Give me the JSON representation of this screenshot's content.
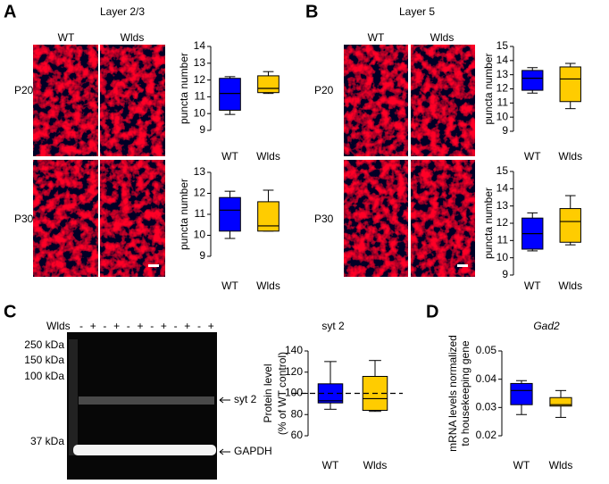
{
  "panel_a": {
    "letter": "A",
    "title": "Layer 2/3",
    "columns": [
      "WT",
      "Wlds"
    ],
    "rows": [
      "P20",
      "P30"
    ]
  },
  "panel_b": {
    "letter": "B",
    "title": "Layer 5",
    "columns": [
      "WT",
      "Wlds"
    ],
    "rows": [
      "P20",
      "P30"
    ]
  },
  "panel_c": {
    "letter": "C",
    "lane_label": "Wlds",
    "lanes": [
      "-",
      "+",
      "-",
      "+",
      "-",
      "+",
      "-",
      "+",
      "-",
      "+",
      "-",
      "+"
    ],
    "markers": [
      "250 kDa",
      "150 kDa",
      "100 kDa",
      "37 kDa"
    ],
    "bands": [
      "syt 2",
      "GAPDH"
    ]
  },
  "panel_d": {
    "letter": "D"
  },
  "chart_data": [
    {
      "type": "box",
      "ylabel": "puncta number",
      "categories": [
        "WT",
        "Wlds"
      ],
      "colors": [
        "#0000ff",
        "#ffcc00"
      ],
      "ylim": [
        9,
        14
      ],
      "yticks": [
        9,
        10,
        11,
        12,
        13,
        14
      ],
      "boxes": [
        {
          "whisker_low": 9.95,
          "q1": 10.2,
          "median": 11.2,
          "q3": 12.1,
          "whisker_high": 12.2
        },
        {
          "whisker_low": 11.2,
          "q1": 11.25,
          "median": 11.5,
          "q3": 12.25,
          "whisker_high": 12.5
        }
      ]
    },
    {
      "type": "box",
      "ylabel": "puncta number",
      "categories": [
        "WT",
        "Wlds"
      ],
      "colors": [
        "#0000ff",
        "#ffcc00"
      ],
      "ylim": [
        9,
        13
      ],
      "yticks": [
        9,
        10,
        11,
        12,
        13
      ],
      "boxes": [
        {
          "whisker_low": 9.85,
          "q1": 10.2,
          "median": 11.2,
          "q3": 11.8,
          "whisker_high": 12.1
        },
        {
          "whisker_low": 10.2,
          "q1": 10.2,
          "median": 10.45,
          "q3": 11.6,
          "whisker_high": 12.15
        }
      ]
    },
    {
      "type": "box",
      "ylabel": "puncta number",
      "categories": [
        "WT",
        "Wlds"
      ],
      "colors": [
        "#0000ff",
        "#ffcc00"
      ],
      "ylim": [
        9,
        15
      ],
      "yticks": [
        9,
        10,
        11,
        12,
        13,
        14,
        15
      ],
      "boxes": [
        {
          "whisker_low": 11.7,
          "q1": 11.9,
          "median": 12.75,
          "q3": 13.3,
          "whisker_high": 13.5
        },
        {
          "whisker_low": 10.6,
          "q1": 11.1,
          "median": 12.7,
          "q3": 13.55,
          "whisker_high": 13.8
        }
      ]
    },
    {
      "type": "box",
      "ylabel": "puncta number",
      "categories": [
        "WT",
        "Wlds"
      ],
      "colors": [
        "#0000ff",
        "#ffcc00"
      ],
      "ylim": [
        9,
        15
      ],
      "yticks": [
        9,
        10,
        11,
        12,
        13,
        14,
        15
      ],
      "boxes": [
        {
          "whisker_low": 10.4,
          "q1": 10.5,
          "median": 11.4,
          "q3": 12.3,
          "whisker_high": 12.6
        },
        {
          "whisker_low": 10.75,
          "q1": 10.9,
          "median": 12.1,
          "q3": 12.85,
          "whisker_high": 13.6
        }
      ]
    },
    {
      "type": "box",
      "title": "syt 2",
      "ylabel": [
        "Protein level",
        "(% of WT control)"
      ],
      "categories": [
        "WT",
        "Wlds"
      ],
      "colors": [
        "#0000ff",
        "#ffcc00"
      ],
      "ylim": [
        60,
        140
      ],
      "yticks": [
        60,
        80,
        100,
        120,
        140
      ],
      "reference_line": 100,
      "boxes": [
        {
          "whisker_low": 85,
          "q1": 91,
          "median": 93,
          "q3": 109,
          "whisker_high": 130
        },
        {
          "whisker_low": 83,
          "q1": 84,
          "median": 95,
          "q3": 116,
          "whisker_high": 131
        }
      ]
    },
    {
      "type": "box",
      "title": "Gad2",
      "ylabel": [
        "mRNA levels normalized",
        "to housekeeping gene"
      ],
      "categories": [
        "WT",
        "Wlds"
      ],
      "colors": [
        "#0000ff",
        "#ffcc00"
      ],
      "ylim": [
        0.02,
        0.05
      ],
      "yticks": [
        0.02,
        0.03,
        0.04,
        0.05
      ],
      "boxes": [
        {
          "whisker_low": 0.0275,
          "q1": 0.031,
          "median": 0.036,
          "q3": 0.0385,
          "whisker_high": 0.0395
        },
        {
          "whisker_low": 0.0265,
          "q1": 0.0305,
          "median": 0.031,
          "q3": 0.0335,
          "whisker_high": 0.036
        }
      ]
    }
  ]
}
